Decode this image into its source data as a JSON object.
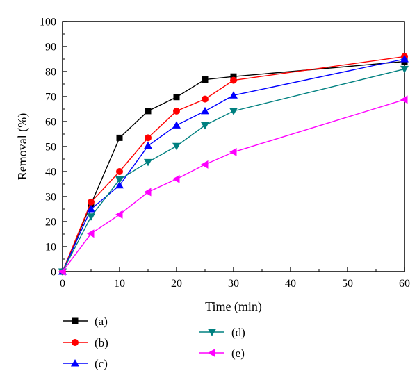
{
  "chart_data": {
    "type": "line",
    "title": "",
    "xlabel": "Time (min)",
    "ylabel": "Removal (%)",
    "xlim": [
      0,
      60
    ],
    "ylim": [
      0,
      100
    ],
    "xticks": [
      0,
      10,
      20,
      30,
      40,
      50,
      60
    ],
    "yticks": [
      0,
      10,
      20,
      30,
      40,
      50,
      60,
      70,
      80,
      90,
      100
    ],
    "x": [
      0,
      5,
      10,
      15,
      20,
      25,
      30,
      60
    ],
    "grid": false,
    "legend_position": "bottom",
    "series": [
      {
        "name": "(a)",
        "color": "#000000",
        "marker": "square",
        "values": [
          0,
          27,
          53.5,
          64.2,
          69.8,
          76.8,
          78.0,
          84.0
        ]
      },
      {
        "name": "(b)",
        "color": "#ff0000",
        "marker": "circle",
        "values": [
          0,
          27.8,
          40.0,
          53.5,
          64.2,
          69.0,
          76.5,
          86.0
        ]
      },
      {
        "name": "(c)",
        "color": "#0000ff",
        "marker": "triangle-up",
        "values": [
          0,
          25.0,
          34.5,
          50.3,
          58.5,
          64.2,
          70.5,
          85.0
        ]
      },
      {
        "name": "(d)",
        "color": "#008080",
        "marker": "triangle-down",
        "values": [
          0,
          22.0,
          36.8,
          43.8,
          50.2,
          58.5,
          64.2,
          81.0
        ]
      },
      {
        "name": "(e)",
        "color": "#ff00ff",
        "marker": "triangle-left",
        "values": [
          0,
          15.2,
          22.8,
          31.8,
          37.0,
          42.8,
          47.8,
          68.8
        ]
      }
    ]
  }
}
